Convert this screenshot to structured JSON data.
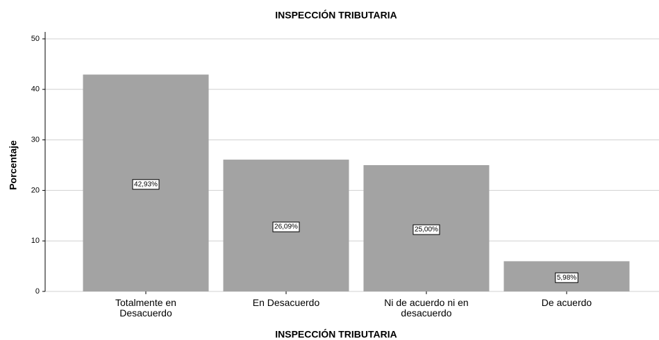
{
  "chart_data": {
    "type": "bar",
    "title": "INSPECCIÓN TRIBUTARIA",
    "x_label": "INSPECCIÓN TRIBUTARIA",
    "y_label": "Porcentaje",
    "categories": [
      "Totalmente en Desacuerdo",
      "En Desacuerdo",
      "Ni de acuerdo ni en desacuerdo",
      "De acuerdo"
    ],
    "values": [
      42.93,
      26.09,
      25.0,
      5.98
    ],
    "value_labels": [
      "42,93%",
      "26,09%",
      "25,00%",
      "5,98%"
    ],
    "color": "#a3a3a3",
    "ylim": [
      0,
      50
    ],
    "yticks": [
      0,
      10,
      20,
      30,
      40,
      50
    ],
    "grid": true
  }
}
